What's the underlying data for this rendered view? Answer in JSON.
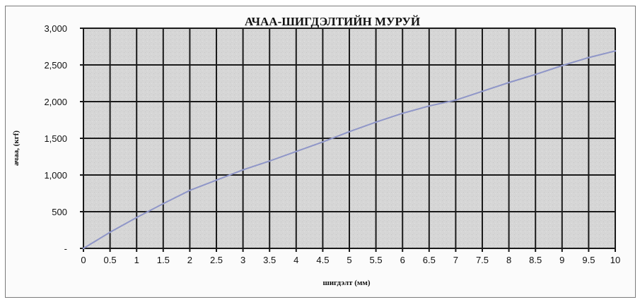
{
  "chart_data": {
    "type": "line",
    "title": "АЧАА-ШИГДЭЛТИЙН МУРУЙ",
    "xlabel": "шигдэлт (мм)",
    "ylabel": "ачаа, (кгf)",
    "xlim": [
      0,
      10
    ],
    "ylim": [
      0,
      3000
    ],
    "x_ticks": [
      "0",
      "0.5",
      "1",
      "1.5",
      "2",
      "2.5",
      "3",
      "3.5",
      "4",
      "4.5",
      "5",
      "5.5",
      "6",
      "6.5",
      "7",
      "7.5",
      "8",
      "8.5",
      "9",
      "9.5",
      "10"
    ],
    "y_ticks": [
      "-",
      "500",
      "1,000",
      "1,500",
      "2,000",
      "2,500",
      "3,000"
    ],
    "grid": true,
    "line_color": "#8f96c8",
    "series": [
      {
        "x": [
          0,
          0.5,
          1,
          1.5,
          2,
          2.5,
          3,
          3.5,
          4,
          4.5,
          5,
          5.5,
          6,
          6.5,
          7,
          7.5,
          8,
          8.5,
          9,
          9.5,
          10
        ],
        "values": [
          0,
          220,
          420,
          610,
          790,
          930,
          1070,
          1190,
          1320,
          1450,
          1590,
          1720,
          1840,
          1940,
          2020,
          2140,
          2260,
          2370,
          2490,
          2600,
          2690
        ]
      }
    ]
  }
}
